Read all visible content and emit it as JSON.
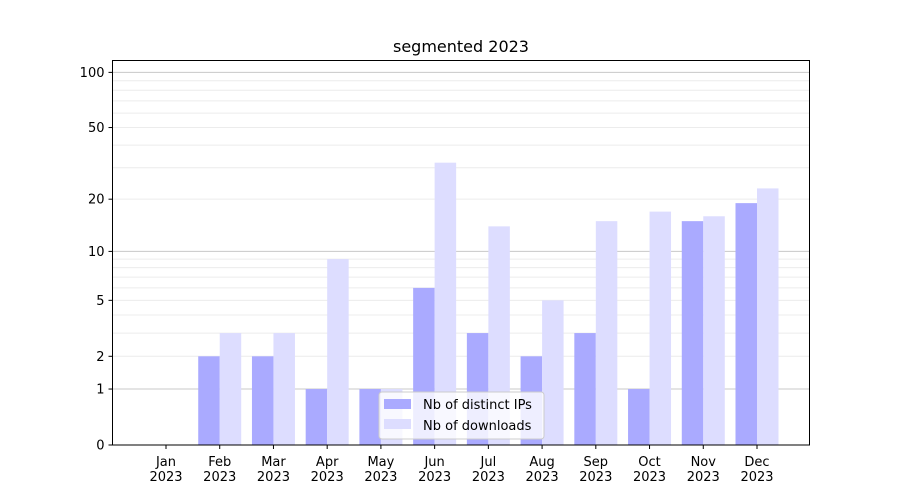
{
  "chart_data": {
    "type": "bar",
    "title": "segmented 2023",
    "xlabel": "",
    "ylabel": "",
    "yscale": "log(1+y)",
    "ylim": [
      0,
      116
    ],
    "yticks": [
      0,
      1,
      2,
      5,
      10,
      20,
      50,
      100
    ],
    "grid": true,
    "legend_position": "bottom-center",
    "categories": [
      "Jan\n2023",
      "Feb\n2023",
      "Mar\n2023",
      "Apr\n2023",
      "May\n2023",
      "Jun\n2023",
      "Jul\n2023",
      "Aug\n2023",
      "Sep\n2023",
      "Oct\n2023",
      "Nov\n2023",
      "Dec\n2023"
    ],
    "series": [
      {
        "name": "Nb of distinct IPs",
        "color": "#aaaaff",
        "values": [
          0,
          2,
          2,
          1,
          1,
          6,
          3,
          2,
          3,
          1,
          15,
          19
        ]
      },
      {
        "name": "Nb of downloads",
        "color": "#ddddff",
        "values": [
          0,
          3,
          3,
          9,
          1,
          32,
          14,
          5,
          15,
          17,
          16,
          23
        ]
      }
    ]
  }
}
